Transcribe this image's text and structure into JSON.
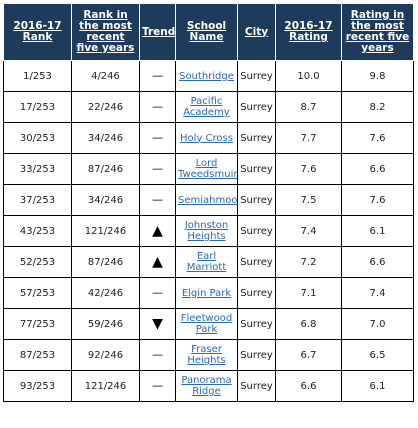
{
  "table": {
    "headers": {
      "rank": "2016-17 Rank",
      "rank_five": "Rank in the most recent five years",
      "trend": "Trend",
      "school": "School Name",
      "city": "City",
      "rating": "2016-17 Rating",
      "rating_five": "Rating in the most recent five years"
    },
    "rows": [
      {
        "rank": "1/253",
        "rank_five": "4/246",
        "trend": "—",
        "trend_icon": "flat-dash-icon",
        "school": "Southridge",
        "city": "Surrey",
        "rating": "10.0",
        "rating_five": "9.8"
      },
      {
        "rank": "17/253",
        "rank_five": "22/246",
        "trend": "—",
        "trend_icon": "flat-dash-icon",
        "school": "Pacific Academy",
        "city": "Surrey",
        "rating": "8.7",
        "rating_five": "8.2"
      },
      {
        "rank": "30/253",
        "rank_five": "34/246",
        "trend": "—",
        "trend_icon": "flat-dash-icon",
        "school": "Holy Cross",
        "city": "Surrey",
        "rating": "7.7",
        "rating_five": "7.6"
      },
      {
        "rank": "33/253",
        "rank_five": "87/246",
        "trend": "—",
        "trend_icon": "flat-dash-icon",
        "school": "Lord Tweedsmuir",
        "city": "Surrey",
        "rating": "7.6",
        "rating_five": "6.6"
      },
      {
        "rank": "37/253",
        "rank_five": "34/246",
        "trend": "—",
        "trend_icon": "flat-dash-icon",
        "school": "Semiahmoo",
        "city": "Surrey",
        "rating": "7.5",
        "rating_five": "7.6"
      },
      {
        "rank": "43/253",
        "rank_five": "121/246",
        "trend": "▲",
        "trend_icon": "up-triangle-icon",
        "school": "Johnston Heights",
        "city": "Surrey",
        "rating": "7.4",
        "rating_five": "6.1"
      },
      {
        "rank": "52/253",
        "rank_five": "87/246",
        "trend": "▲",
        "trend_icon": "up-triangle-icon",
        "school": "Earl Marriott",
        "city": "Surrey",
        "rating": "7.2",
        "rating_five": "6.6"
      },
      {
        "rank": "57/253",
        "rank_five": "42/246",
        "trend": "—",
        "trend_icon": "flat-dash-icon",
        "school": "Elgin Park",
        "city": "Surrey",
        "rating": "7.1",
        "rating_five": "7.4"
      },
      {
        "rank": "77/253",
        "rank_five": "59/246",
        "trend": "▼",
        "trend_icon": "down-triangle-icon",
        "school": "Fleetwood Park",
        "city": "Surrey",
        "rating": "6.8",
        "rating_five": "7.0"
      },
      {
        "rank": "87/253",
        "rank_five": "92/246",
        "trend": "—",
        "trend_icon": "flat-dash-icon",
        "school": "Fraser Heights",
        "city": "Surrey",
        "rating": "6.7",
        "rating_five": "6.5"
      },
      {
        "rank": "93/253",
        "rank_five": "121/246",
        "trend": "—",
        "trend_icon": "flat-dash-icon",
        "school": "Panorama Ridge",
        "city": "Surrey",
        "rating": "6.6",
        "rating_five": "6.1"
      }
    ]
  },
  "colors": {
    "header_bg": "#1f3b5c",
    "link": "#2a6ab3"
  }
}
